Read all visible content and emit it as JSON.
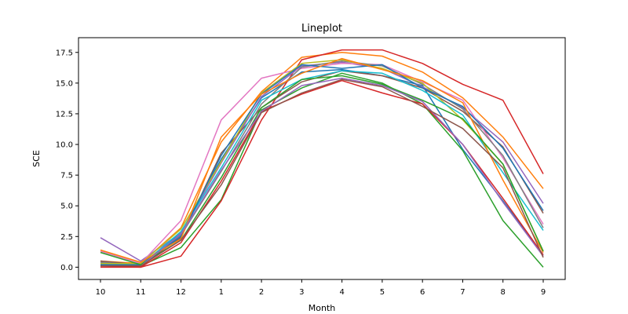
{
  "chart_data": {
    "type": "line",
    "title": "Lineplot",
    "xlabel": "Month",
    "ylabel": "SCE",
    "categories": [
      "10",
      "11",
      "12",
      "1",
      "2",
      "3",
      "4",
      "5",
      "6",
      "7",
      "8",
      "9"
    ],
    "ylim": [
      -1.0,
      18.7
    ],
    "yticks": [
      0.0,
      2.5,
      5.0,
      7.5,
      10.0,
      12.5,
      15.0,
      17.5
    ],
    "ytick_labels": [
      "0.0",
      "2.5",
      "5.0",
      "7.5",
      "10.0",
      "12.5",
      "15.0",
      "17.5"
    ],
    "grid": false,
    "legend": false,
    "series": [
      {
        "color": "#1f77b4",
        "values": [
          0.3,
          0.2,
          2.8,
          8.8,
          13.8,
          15.9,
          16.1,
          15.6,
          14.8,
          9.6,
          5.4,
          1.0
        ]
      },
      {
        "color": "#ff7f0e",
        "values": [
          0.5,
          0.3,
          3.2,
          10.2,
          14.3,
          17.1,
          17.5,
          17.2,
          15.9,
          13.8,
          10.6,
          6.4
        ]
      },
      {
        "color": "#2ca02c",
        "values": [
          0.1,
          0.1,
          1.6,
          5.5,
          12.8,
          14.6,
          15.8,
          15.0,
          13.3,
          9.5,
          3.8,
          0.0
        ]
      },
      {
        "color": "#d62728",
        "values": [
          0.1,
          0.0,
          0.9,
          5.4,
          12.0,
          16.9,
          17.7,
          17.7,
          16.6,
          14.9,
          13.6,
          7.6
        ]
      },
      {
        "color": "#9467bd",
        "values": [
          2.4,
          0.5,
          2.8,
          8.5,
          13.9,
          16.4,
          16.7,
          16.2,
          14.7,
          13.0,
          10.2,
          5.2
        ]
      },
      {
        "color": "#8c564b",
        "values": [
          0.5,
          0.2,
          2.4,
          9.3,
          13.0,
          15.1,
          16.0,
          15.6,
          14.6,
          12.7,
          9.8,
          4.4
        ]
      },
      {
        "color": "#e377c2",
        "values": [
          1.3,
          0.3,
          3.8,
          12.0,
          15.4,
          16.2,
          16.6,
          16.5,
          15.1,
          13.6,
          8.9,
          3.5
        ]
      },
      {
        "color": "#7f7f7f",
        "values": [
          0.4,
          0.2,
          2.6,
          7.8,
          13.3,
          16.3,
          16.8,
          16.4,
          14.9,
          12.9,
          9.1,
          3.2
        ]
      },
      {
        "color": "#bcbd22",
        "values": [
          0.3,
          0.3,
          3.1,
          8.6,
          14.2,
          16.6,
          16.9,
          16.2,
          15.0,
          12.0,
          8.4,
          1.3
        ]
      },
      {
        "color": "#17becf",
        "values": [
          0.2,
          0.1,
          2.9,
          8.1,
          13.6,
          15.3,
          16.0,
          15.8,
          14.4,
          12.4,
          7.7,
          3.0
        ]
      },
      {
        "color": "#1f77b4",
        "values": [
          0.2,
          0.2,
          2.5,
          9.1,
          14.1,
          16.5,
          16.2,
          16.5,
          14.6,
          13.1,
          9.7,
          4.6
        ]
      },
      {
        "color": "#ff7f0e",
        "values": [
          1.4,
          0.4,
          2.3,
          10.6,
          14.1,
          15.8,
          17.0,
          16.1,
          15.2,
          13.4,
          7.1,
          1.2
        ]
      },
      {
        "color": "#2ca02c",
        "values": [
          1.2,
          0.2,
          2.2,
          7.3,
          13.0,
          15.3,
          15.6,
          14.9,
          13.6,
          12.1,
          8.4,
          1.3
        ]
      },
      {
        "color": "#d62728",
        "values": [
          0.0,
          0.0,
          2.0,
          7.0,
          12.7,
          14.1,
          15.2,
          14.2,
          13.3,
          10.0,
          5.6,
          1.0
        ]
      },
      {
        "color": "#9467bd",
        "values": [
          0.1,
          0.1,
          2.7,
          7.9,
          12.7,
          14.8,
          15.4,
          14.8,
          13.5,
          10.0,
          5.3,
          0.9
        ]
      },
      {
        "color": "#8c564b",
        "values": [
          0.1,
          0.1,
          2.2,
          6.7,
          12.6,
          14.2,
          15.3,
          14.7,
          13.1,
          11.3,
          8.1,
          0.8
        ]
      }
    ]
  }
}
